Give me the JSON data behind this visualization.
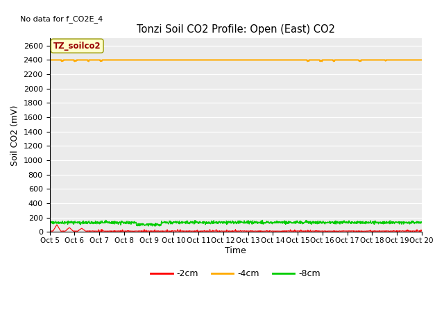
{
  "title": "Tonzi Soil CO2 Profile: Open (East) CO2",
  "no_data_text": "No data for f_CO2E_4",
  "ylabel": "Soil CO2 (mV)",
  "xlabel": "Time",
  "ylim": [
    0,
    2700
  ],
  "yticks": [
    0,
    200,
    400,
    600,
    800,
    1000,
    1200,
    1400,
    1600,
    1800,
    2000,
    2200,
    2400,
    2600
  ],
  "xlim": [
    0,
    15
  ],
  "xtick_labels": [
    "Oct 5",
    "Oct 6",
    "Oct 7",
    "Oct 8",
    "Oct 9",
    "Oct 10",
    "Oct 11",
    "Oct 12",
    "Oct 13",
    "Oct 14",
    "Oct 15",
    "Oct 16",
    "Oct 17",
    "Oct 18",
    "Oct 19",
    "Oct 20"
  ],
  "legend_label": "TZ_soilco2",
  "legend_bg": "#ffffcc",
  "legend_text_color": "#990000",
  "plot_bg": "#ebebeb",
  "line_2cm_color": "#ff0000",
  "line_4cm_color": "#ffaa00",
  "line_8cm_color": "#00cc00",
  "line_2cm_label": "-2cm",
  "line_4cm_label": "-4cm",
  "line_8cm_label": "-8cm",
  "n_points": 1440,
  "orange_base": 2400,
  "green_base": 130,
  "red_base": 10
}
